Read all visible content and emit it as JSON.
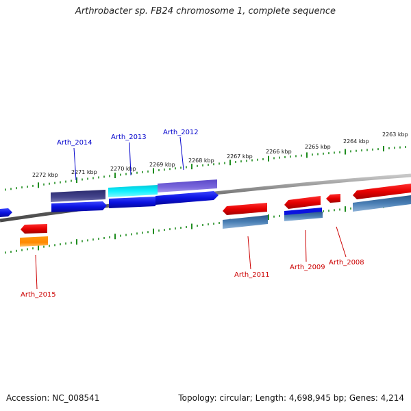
{
  "title": "Arthrobacter sp. FB24 chromosome 1, complete sequence",
  "footer": {
    "accession": "Accession: NC_008541",
    "topology": "Topology: circular; Length: 4,698,945 bp; Genes: 4,214"
  },
  "scale_ticks": [
    "2263 kbp",
    "2264 kbp",
    "2265 kbp",
    "2266 kbp",
    "2267 kbp",
    "2268 kbp",
    "2269 kbp",
    "2270 kbp",
    "2271 kbp",
    "2272 kbp"
  ],
  "genes": [
    {
      "label": "Arth_2015",
      "strand": "forward",
      "color": "#d62020"
    },
    {
      "label": "Arth_2014",
      "strand": "reverse",
      "color": "#0b1f9e"
    },
    {
      "label": "Arth_2013",
      "strand": "reverse",
      "color": "#0b1f9e"
    },
    {
      "label": "Arth_2012",
      "strand": "reverse",
      "color": "#0b1f9e"
    },
    {
      "label": "Arth_2011",
      "strand": "forward",
      "color": "#d62020"
    },
    {
      "label": "Arth_2009",
      "strand": "forward",
      "color": "#d62020"
    },
    {
      "label": "Arth_2008",
      "strand": "forward",
      "color": "#d62020"
    }
  ],
  "colors": {
    "reverse_cds": "#0a12e0",
    "forward_cds": "#e60000",
    "tick": "#1e8c1e",
    "backbone": "#7a7a7a"
  }
}
